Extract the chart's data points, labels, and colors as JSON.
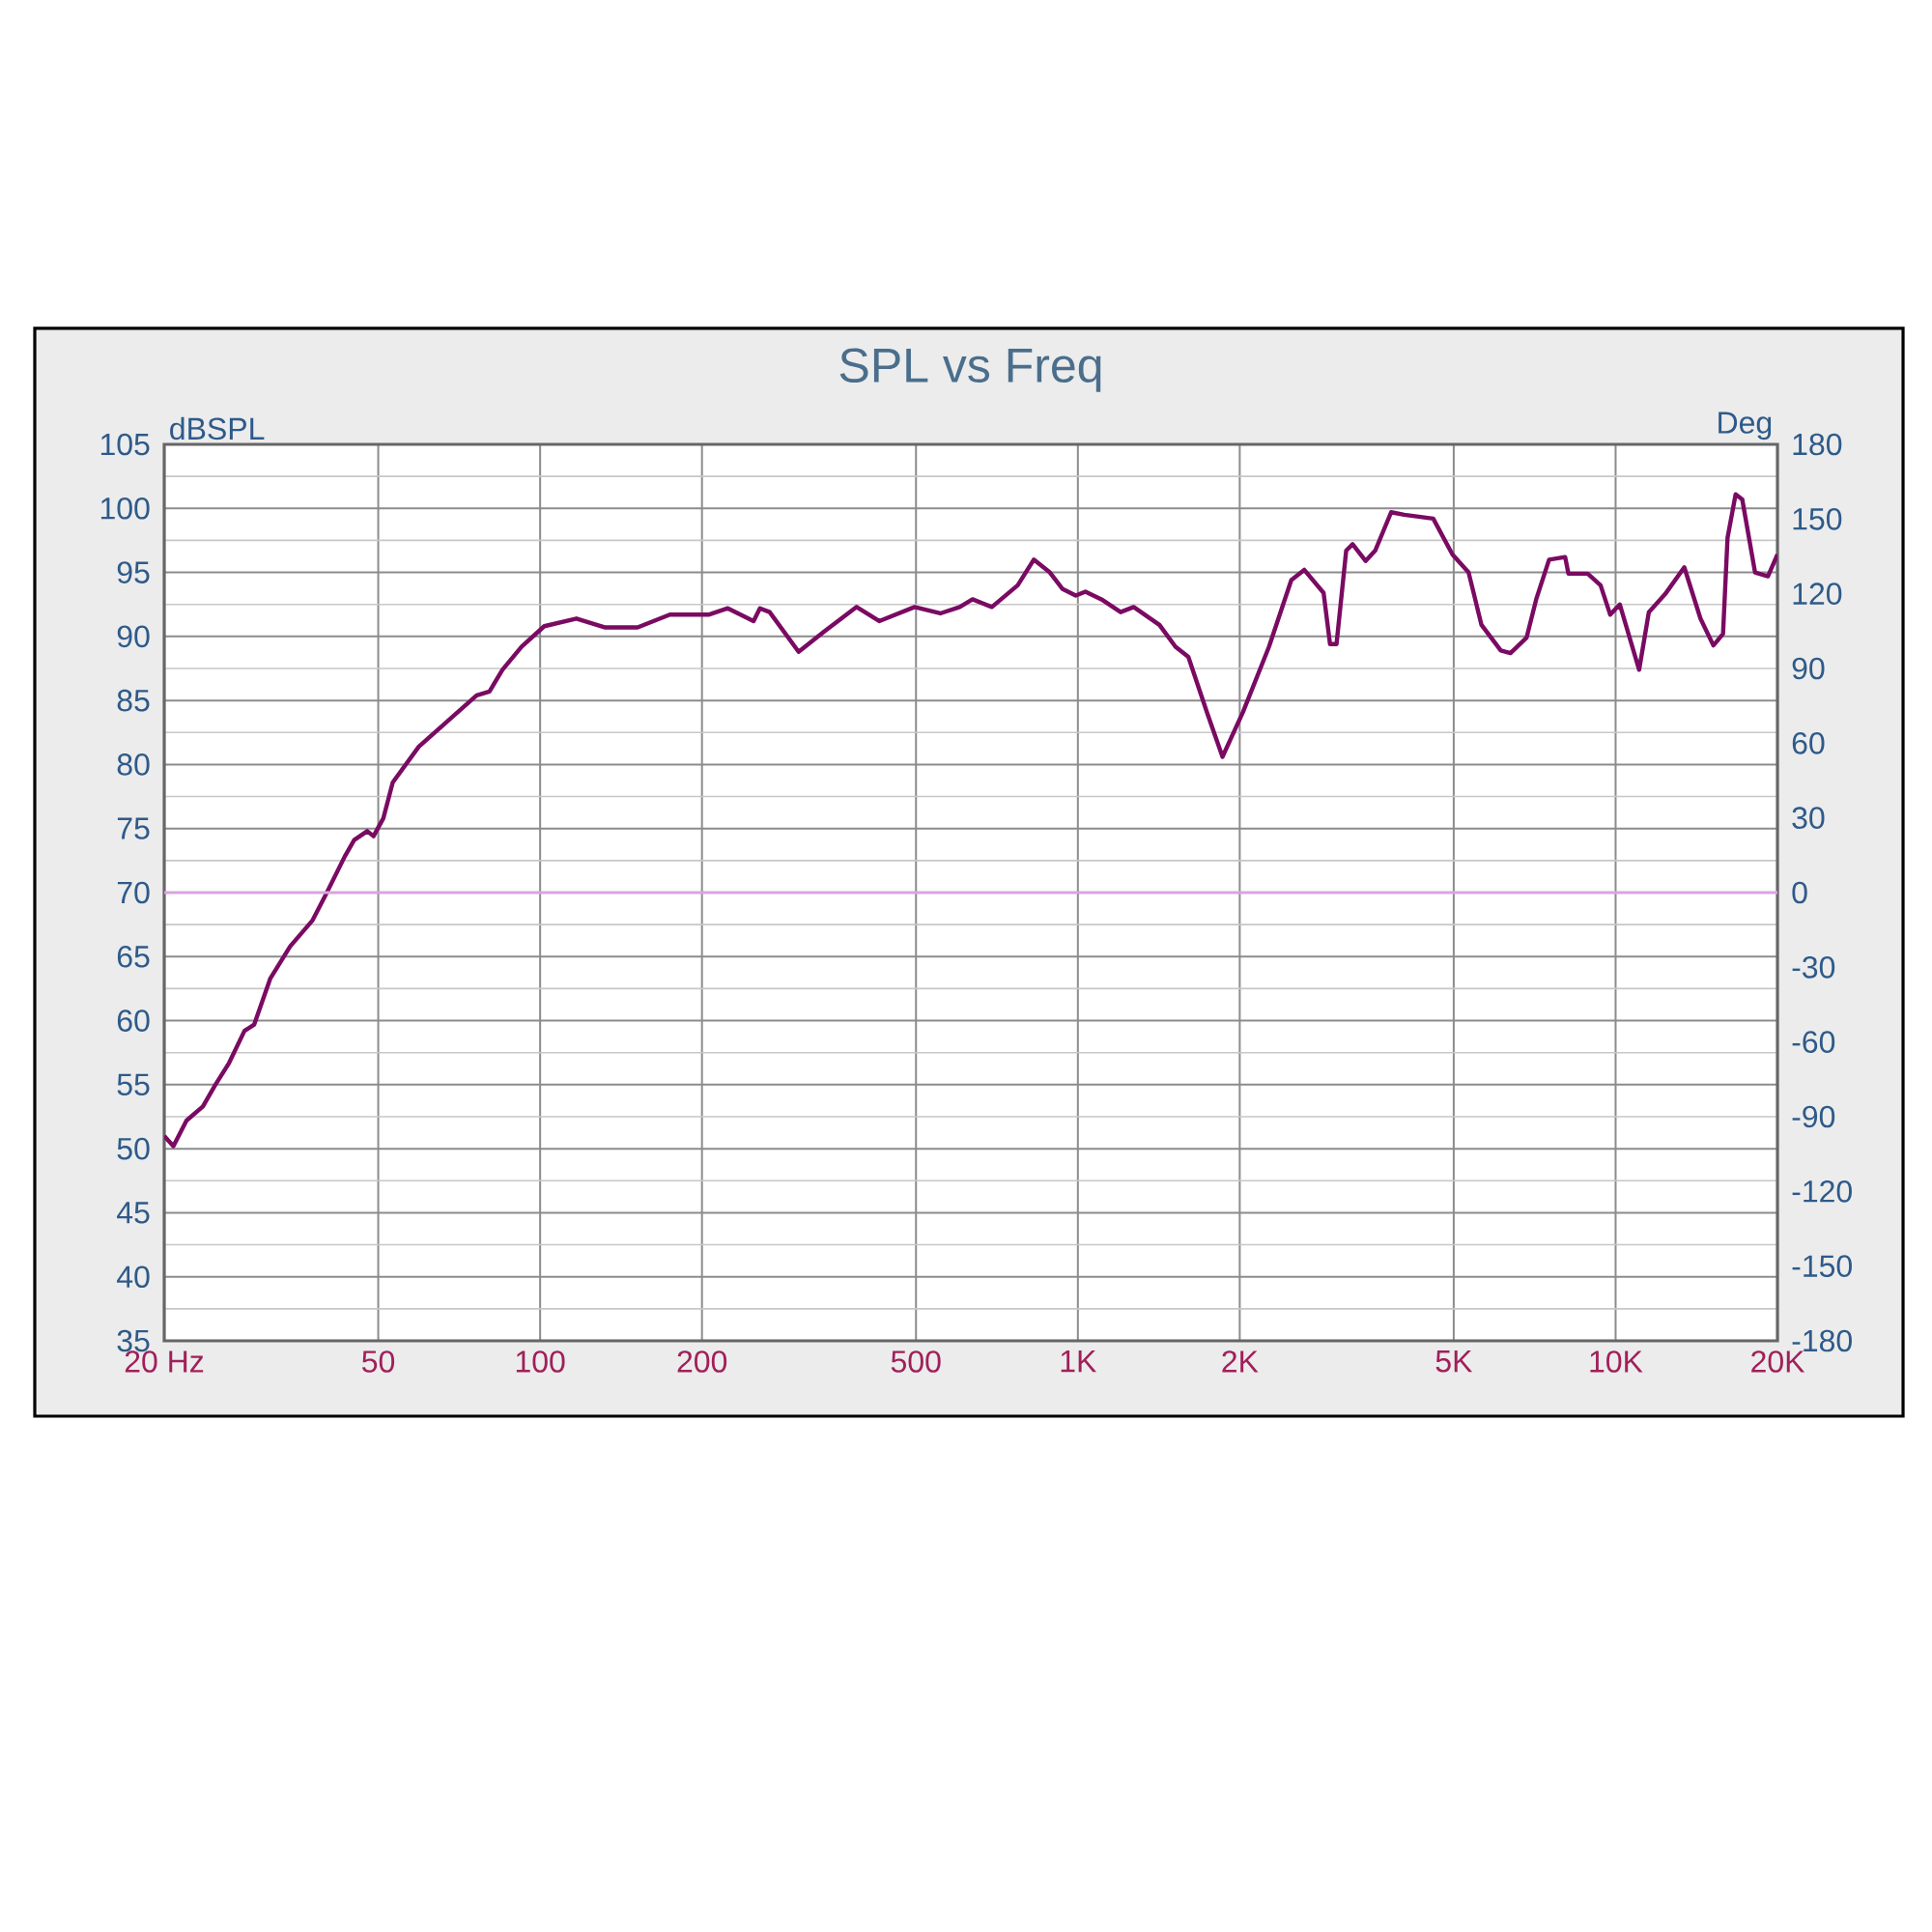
{
  "chart_data": {
    "type": "line",
    "title": "SPL vs Freq",
    "ylabel": "dBSPL",
    "y2label": "Deg",
    "log": "x",
    "grid": true,
    "xlim": [
      20,
      20000
    ],
    "xticks": [
      {
        "value": 20,
        "label": "20  Hz"
      },
      50,
      100,
      200,
      500,
      {
        "value": 1000,
        "label": "1K"
      },
      {
        "value": 2000,
        "label": "2K"
      },
      {
        "value": 5000,
        "label": "5K"
      },
      {
        "value": 10000,
        "label": "10K"
      },
      {
        "value": 20000,
        "label": "20K"
      }
    ],
    "ylim": [
      35,
      105
    ],
    "yticks": [
      35,
      40,
      45,
      50,
      55,
      60,
      65,
      70,
      75,
      80,
      85,
      90,
      95,
      100,
      105
    ],
    "y2lim": [
      -180,
      180
    ],
    "y2ticks": [
      -180,
      -150,
      -120,
      -90,
      -60,
      -30,
      0,
      30,
      60,
      90,
      120,
      150,
      180
    ],
    "ref_lines": [
      {
        "axis": "y2",
        "value": 0,
        "color": "#d8a4e0"
      }
    ],
    "series": [
      {
        "color": "#7a0a62",
        "x": [
          20,
          20.8,
          22.0,
          23.6,
          24.9,
          26.4,
          28.2,
          29.4,
          31.5,
          34.3,
          37.7,
          39.9,
          43.3,
          45.1,
          47.7,
          49.0,
          51.1,
          53.2,
          59.5,
          68.2,
          76.2,
          80.5,
          85.1,
          92.4,
          101.8,
          116.8,
          132.2,
          151.8,
          174.3,
          205.7,
          223.4,
          249.4,
          256.3,
          267.2,
          302.5,
          338.0,
          387.8,
          427.2,
          497,
          555,
          603,
          637,
          692,
          773,
          828,
          887,
          937,
          991,
          1033,
          1106,
          1201,
          1270,
          1418,
          1519,
          1605,
          1744,
          1858,
          2028,
          2267,
          2494,
          2636,
          2864,
          2944,
          3027,
          3155,
          3243,
          3428,
          3572,
          3825,
          4044,
          4580,
          4973,
          5328,
          5631,
          6116,
          6375,
          6829,
          7118,
          7522,
          8057,
          8171,
          8875,
          9376,
          9773,
          10180,
          11060,
          11530,
          12360,
          13420,
          14380,
          15200,
          15840,
          16150,
          16720,
          17200,
          18170,
          19200,
          20000
        ],
        "values": [
          51.0,
          50.2,
          52.2,
          53.3,
          55.0,
          56.7,
          59.2,
          59.7,
          63.3,
          65.8,
          67.8,
          69.8,
          72.8,
          74.1,
          74.8,
          74.4,
          75.8,
          78.6,
          81.4,
          83.6,
          85.4,
          85.7,
          87.4,
          89.2,
          90.8,
          91.4,
          90.7,
          90.7,
          91.7,
          91.7,
          92.2,
          91.2,
          92.2,
          91.9,
          88.8,
          90.4,
          92.3,
          91.2,
          92.3,
          91.8,
          92.3,
          92.9,
          92.3,
          94.0,
          96.0,
          95.0,
          93.7,
          93.2,
          93.5,
          92.9,
          91.9,
          92.3,
          90.9,
          89.2,
          88.4,
          83.9,
          80.6,
          84.1,
          89.2,
          94.4,
          95.2,
          93.4,
          89.4,
          89.4,
          96.7,
          97.2,
          95.9,
          96.7,
          99.7,
          99.5,
          99.2,
          96.4,
          95.0,
          90.9,
          88.9,
          88.7,
          89.9,
          92.9,
          96.0,
          96.2,
          94.9,
          94.9,
          94.0,
          91.7,
          92.5,
          87.4,
          91.9,
          93.3,
          95.4,
          91.4,
          89.3,
          90.2,
          97.7,
          101.1,
          100.7,
          95.0,
          94.7,
          96.4
        ]
      }
    ]
  }
}
